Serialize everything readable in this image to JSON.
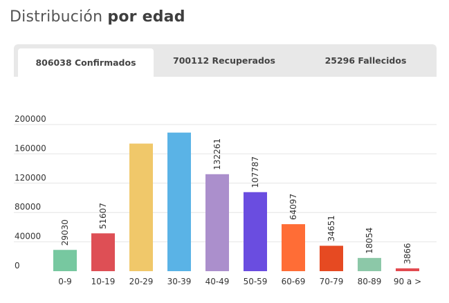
{
  "header": {
    "title_regular": "Distribución",
    "title_bold": "por edad"
  },
  "tabs": [
    {
      "label": "806038 Confirmados",
      "active": true
    },
    {
      "label": "700112 Recuperados",
      "active": false
    },
    {
      "label": "25296 Fallecidos",
      "active": false
    }
  ],
  "chart_data": {
    "type": "bar",
    "categories": [
      "0-9",
      "10-19",
      "20-29",
      "30-39",
      "40-49",
      "50-59",
      "60-69",
      "70-79",
      "80-89",
      "90 a >"
    ],
    "values": [
      29030,
      51607,
      174000,
      189000,
      132261,
      107787,
      64097,
      34651,
      18054,
      3866
    ],
    "data_labels": [
      "29030",
      "51607",
      "",
      "",
      "132261",
      "107787",
      "64097",
      "34651",
      "18054",
      "3866"
    ],
    "colors": [
      "#77c8a0",
      "#de4f55",
      "#f0c86a",
      "#5ab3e6",
      "#ab8fcc",
      "#6a4de0",
      "#ff6d36",
      "#e64a22",
      "#8cc8a8",
      "#e24a50"
    ],
    "yticks": [
      "0",
      "40000",
      "80000",
      "120000",
      "160000",
      "200000"
    ],
    "ylim": [
      0,
      200000
    ],
    "grid": true,
    "gridline_color": "#e4e4e4",
    "text_color": "#333333"
  }
}
